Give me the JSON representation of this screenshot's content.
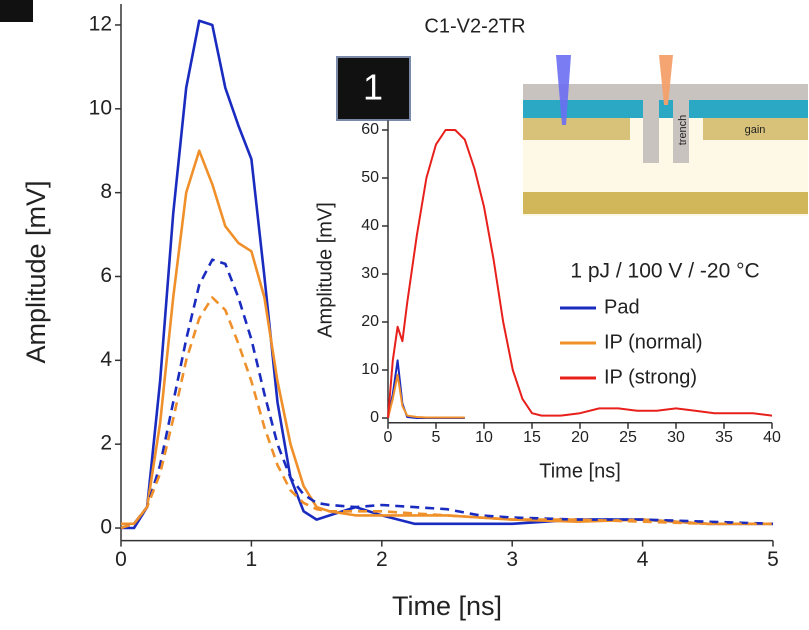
{
  "chart_data": [
    {
      "type": "line",
      "title": "C1-V2-2TR",
      "x_label": "Time [ns]",
      "y_label": "Amplitude [mV]",
      "x": [
        0,
        0.1,
        0.2,
        0.3,
        0.4,
        0.5,
        0.6,
        0.7,
        0.8,
        0.9,
        1.0,
        1.1,
        1.2,
        1.3,
        1.4,
        1.5,
        1.6,
        1.8,
        2.0,
        2.25,
        2.5,
        2.75,
        3.0,
        3.5,
        4.0,
        4.5,
        5.0
      ],
      "series": [
        {
          "color": "#1a2bc0",
          "style": "solid",
          "values": [
            0,
            0,
            0.5,
            3.5,
            7.5,
            10.5,
            12.1,
            12.0,
            10.5,
            9.6,
            8.8,
            6.0,
            3.0,
            1.2,
            0.4,
            0.2,
            0.3,
            0.5,
            0.3,
            0.1,
            0.1,
            0.1,
            0.1,
            0.2,
            0.2,
            0.1,
            0.1
          ]
        },
        {
          "color": "#f0902a",
          "style": "solid",
          "values": [
            0.1,
            0.1,
            0.5,
            2.5,
            5.5,
            8,
            9,
            8.2,
            7.2,
            6.8,
            6.6,
            5.5,
            3.5,
            2,
            1,
            0.5,
            0.4,
            0.3,
            0.3,
            0.3,
            0.3,
            0.25,
            0.2,
            0.15,
            0.2,
            0.1,
            0.1
          ]
        },
        {
          "color": "#1a2bc0",
          "style": "dashed",
          "values": [
            0,
            0.1,
            0.5,
            1.5,
            3,
            4.5,
            5.8,
            6.4,
            6.3,
            5.5,
            4.5,
            3.2,
            2,
            1.2,
            0.8,
            0.6,
            0.55,
            0.5,
            0.55,
            0.5,
            0.45,
            0.3,
            0.25,
            0.2,
            0.2,
            0.15,
            0.1
          ]
        },
        {
          "color": "#f0902a",
          "style": "dashed",
          "values": [
            0,
            0.1,
            0.5,
            1.3,
            2.6,
            4,
            5,
            5.5,
            5.2,
            4.4,
            3.5,
            2.4,
            1.5,
            0.9,
            0.6,
            0.45,
            0.4,
            0.4,
            0.4,
            0.35,
            0.3,
            0.25,
            0.2,
            0.2,
            0.15,
            0.1,
            0.1
          ]
        }
      ],
      "xlim": [
        0,
        5
      ],
      "xticks": [
        0,
        1,
        2,
        3,
        4,
        5
      ],
      "ylim": [
        -0.3,
        12.5
      ],
      "yticks": [
        0,
        2,
        4,
        6,
        8,
        10,
        12
      ]
    },
    {
      "type": "line",
      "panel_label": "1",
      "x_label": "Time [ns]",
      "y_label": "Amplitude [mV]",
      "annotation": "1 pJ / 100 V / -20 °C",
      "diagram_labels": [
        "trench",
        "gain"
      ],
      "x": [
        0,
        0.5,
        1,
        1.5,
        2,
        3,
        4,
        5,
        6,
        7,
        8,
        9,
        10,
        11,
        12,
        13,
        14,
        15,
        16,
        18,
        20,
        22,
        24,
        26,
        28,
        30,
        32,
        34,
        36,
        38,
        40
      ],
      "series": [
        {
          "name": "Pad",
          "color": "#1a2bc0",
          "style": "solid",
          "values": [
            0,
            5,
            12,
            3,
            0.2,
            0,
            0,
            0,
            0,
            0,
            0,
            null,
            null,
            null,
            null,
            null,
            null,
            null,
            null,
            null,
            null,
            null,
            null,
            null,
            null,
            null,
            null,
            null,
            null,
            null,
            null
          ]
        },
        {
          "name": "IP (normal)",
          "color": "#f0902a",
          "style": "solid",
          "values": [
            0,
            4,
            9,
            2.5,
            0.5,
            0.2,
            0.1,
            0.1,
            0.1,
            0.1,
            0.1,
            null,
            null,
            null,
            null,
            null,
            null,
            null,
            null,
            null,
            null,
            null,
            null,
            null,
            null,
            null,
            null,
            null,
            null,
            null,
            null
          ]
        },
        {
          "name": "IP (strong)",
          "color": "#e8201c",
          "style": "solid",
          "values": [
            0,
            12,
            19,
            16,
            24,
            38,
            50,
            57,
            60,
            60,
            58,
            52,
            44,
            33,
            20,
            10,
            4,
            1,
            0.5,
            0.5,
            1,
            2,
            2,
            1.5,
            1.5,
            2,
            1.5,
            1,
            1,
            1,
            0.5
          ]
        }
      ],
      "xlim": [
        0,
        40
      ],
      "xticks": [
        0,
        5,
        10,
        15,
        20,
        25,
        30,
        35,
        40
      ],
      "ylim": [
        -1,
        62
      ],
      "yticks": [
        0,
        10,
        20,
        30,
        40,
        50,
        60
      ]
    }
  ]
}
